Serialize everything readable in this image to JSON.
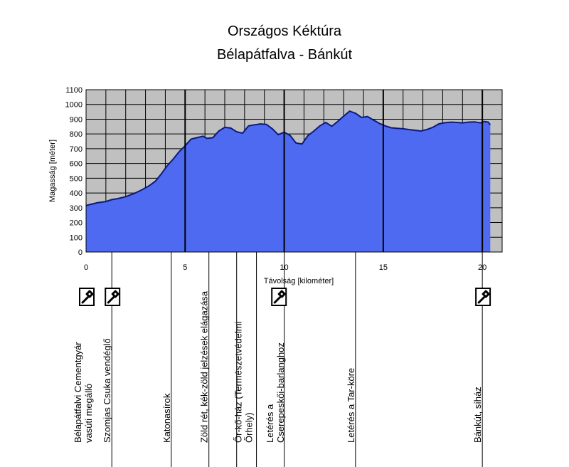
{
  "chart_data": {
    "type": "area",
    "title": "Országos Kéktúra",
    "subtitle": "Bélapátfalva - Bánkút",
    "xlabel": "Távolság [kilométer]",
    "ylabel": "Magasság [méter]",
    "xlim": [
      0,
      21
    ],
    "ylim": [
      0,
      1100
    ],
    "xticks": [
      0,
      5,
      10,
      15,
      20
    ],
    "yticks": [
      0,
      100,
      200,
      300,
      400,
      500,
      600,
      700,
      800,
      900,
      1000,
      1100
    ],
    "grid": true,
    "legend": "none",
    "colors": {
      "fill": "#4e6af0",
      "line": "#0a1a80",
      "background": "#c0c0c0",
      "grid": "#000000"
    },
    "series": [
      {
        "x": [
          0,
          0.3,
          0.6,
          1.0,
          1.3,
          1.6,
          2.0,
          2.4,
          2.8,
          3.2,
          3.5,
          3.8,
          4.1,
          4.4,
          4.7,
          5.0,
          5.3,
          5.6,
          5.9,
          6.1,
          6.4,
          6.7,
          7.0,
          7.3,
          7.6,
          7.9,
          8.2,
          8.5,
          8.8,
          9.1,
          9.4,
          9.7,
          10.0,
          10.3,
          10.6,
          10.9,
          11.2,
          11.5,
          11.8,
          12.1,
          12.4,
          12.7,
          13.0,
          13.3,
          13.6,
          13.9,
          14.2,
          14.5,
          14.8,
          15.1,
          15.4,
          15.7,
          16.0,
          16.3,
          16.6,
          16.9,
          17.2,
          17.5,
          17.8,
          18.1,
          18.4,
          18.7,
          19.0,
          19.3,
          19.6,
          19.9,
          20.1,
          20.3,
          20.4
        ],
        "values": [
          315,
          325,
          335,
          342,
          355,
          362,
          375,
          395,
          420,
          450,
          480,
          530,
          585,
          630,
          680,
          720,
          765,
          775,
          785,
          770,
          775,
          820,
          845,
          840,
          815,
          805,
          855,
          862,
          868,
          865,
          835,
          795,
          812,
          790,
          738,
          732,
          790,
          820,
          855,
          878,
          852,
          885,
          920,
          955,
          940,
          912,
          918,
          895,
          872,
          855,
          842,
          838,
          835,
          830,
          825,
          820,
          830,
          845,
          868,
          876,
          880,
          878,
          875,
          880,
          882,
          875,
          885,
          880,
          862
        ]
      }
    ],
    "markers_km": [
      1.3,
      4.3,
      6.2,
      7.6,
      8.6,
      10.0,
      13.6,
      20.0
    ],
    "poi": [
      {
        "km": 0.0,
        "lines": [
          "Bélapátfalvi Cementgyár",
          "vasúti megálló"
        ],
        "icon": true
      },
      {
        "km": 1.3,
        "lines": [
          "Szomjas Csuka vendéglő"
        ],
        "icon": true
      },
      {
        "km": 4.3,
        "lines": [
          "Katonasírok"
        ],
        "icon": false
      },
      {
        "km": 6.2,
        "lines": [
          "Zöld rét, kék-zöld jelzések elágazása"
        ],
        "icon": false
      },
      {
        "km": 8.1,
        "lines": [
          "Őr-kő-ház (Természetvédelmi",
          "Őrhely)"
        ],
        "icon": false
      },
      {
        "km": 9.7,
        "lines": [
          "Letérés a",
          "Cserepeskői-barlanghoz"
        ],
        "icon": true
      },
      {
        "km": 13.6,
        "lines": [
          "Letérés a Tar-köre"
        ],
        "icon": false
      },
      {
        "km": 20.0,
        "lines": [
          "Bánkút, síház"
        ],
        "icon": true
      }
    ]
  }
}
